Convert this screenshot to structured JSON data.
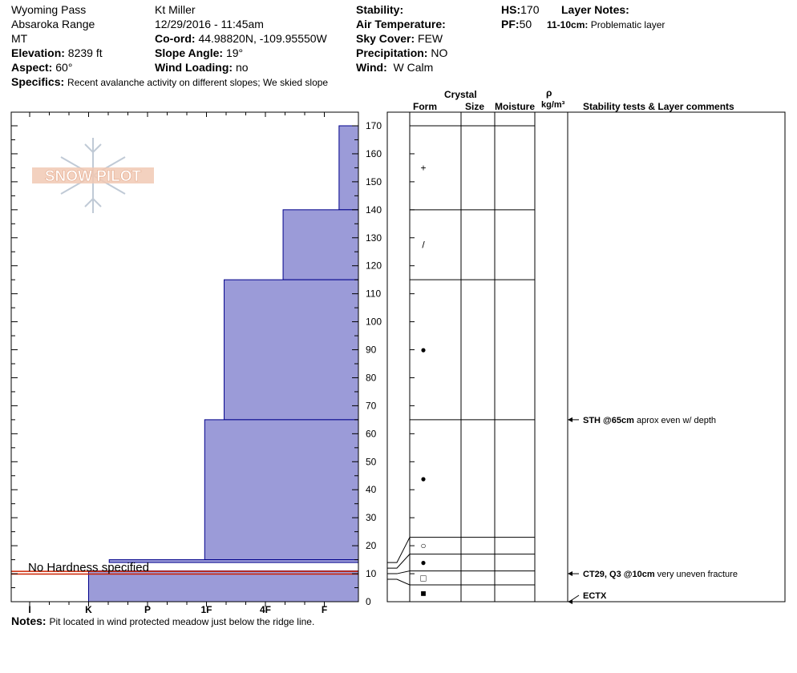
{
  "header": {
    "location": "Wyoming Pass",
    "range": "Absaroka Range",
    "state": "MT",
    "elevation_label": "Elevation:",
    "elevation": "8239 ft",
    "aspect_label": "Aspect:",
    "aspect": "60°",
    "specifics_label": "Specifics:",
    "specifics": "Recent avalanche activity on different slopes;  We skied slope",
    "observer": "Kt Miller",
    "datetime": "12/29/2016 - 11:45am",
    "coord_label": "Co-ord:",
    "coord": "44.98820N, -109.95550W",
    "slope_label": "Slope Angle:",
    "slope": "19°",
    "wind_loading_label": "Wind Loading:",
    "wind_loading": "no",
    "stability_label": "Stability:",
    "stability": "",
    "air_temp_label": "Air Temperature:",
    "air_temp": "",
    "sky_label": "Sky Cover:",
    "sky": "FEW",
    "precip_label": "Precipitation:",
    "precip": "NO",
    "wind_label": "Wind:",
    "wind": "W Calm",
    "hs_label": "HS:",
    "hs": "170",
    "pf_label": "PF:",
    "pf": "50",
    "layer_notes_label": "Layer Notes:",
    "layer_note_depth": "11-10cm:",
    "layer_note_text": "Problematic layer"
  },
  "notes_label": "Notes:",
  "notes": "Pit located in wind protected meadow just below the ridge line.",
  "logo_text": "SNOW PILOT",
  "no_hardness_text": "No Hardness specified",
  "columns": {
    "crystal": "Crystal",
    "form": "Form",
    "size": "Size",
    "moisture": "Moisture",
    "rho": "ρ",
    "density_unit": "kg/m³",
    "tests": "Stability tests & Layer comments"
  },
  "chart_data": {
    "type": "bar",
    "title": "",
    "xlabel": "",
    "ylabel": "",
    "hardness_ticks": [
      "I",
      "K",
      "P",
      "1F",
      "4F",
      "F"
    ],
    "ylim": [
      0,
      175
    ],
    "yticks": [
      0,
      10,
      20,
      30,
      40,
      50,
      60,
      70,
      80,
      90,
      100,
      110,
      120,
      130,
      140,
      150,
      160,
      170
    ],
    "layers": [
      {
        "top": 170,
        "bottom": 140,
        "hardness": "F",
        "form": "+"
      },
      {
        "top": 140,
        "bottom": 115,
        "hardness": "4F",
        "form": "/"
      },
      {
        "top": 115,
        "bottom": 65,
        "hardness": "F-1F",
        "form": "●"
      },
      {
        "top": 65,
        "bottom": 23,
        "hardness": "1F-",
        "form": "●"
      },
      {
        "top": 23,
        "bottom": 17,
        "hardness": "1F-",
        "form": "○"
      },
      {
        "top": 17,
        "bottom": 11,
        "hardness": "1F-",
        "form": "●"
      },
      {
        "top": 11,
        "bottom": 6,
        "hardness": "",
        "form": "□"
      },
      {
        "top": 6,
        "bottom": 0,
        "hardness": "K+",
        "form": "■"
      }
    ],
    "profile_steps": [
      {
        "top": 170,
        "bottom": 140,
        "x": 5.25
      },
      {
        "top": 140,
        "bottom": 115,
        "x": 4.3
      },
      {
        "top": 115,
        "bottom": 65,
        "x": 3.3
      },
      {
        "top": 65,
        "bottom": 15,
        "x": 2.97
      },
      {
        "top": 15,
        "bottom": 14,
        "x": 1.35
      },
      {
        "top": 11,
        "bottom": 0,
        "x": 1.0
      }
    ],
    "tests": [
      {
        "depth": 65,
        "code": "STH @65cm",
        "comment": "aprox even w/ depth"
      },
      {
        "depth": 10,
        "code": "CT29, Q3 @10cm",
        "comment": "very uneven fracture"
      },
      {
        "depth": 0,
        "code": "ECTX",
        "comment": ""
      }
    ],
    "colors": {
      "fill": "#9b9bd8",
      "edge": "#00008b",
      "problem": "#cc2200"
    }
  }
}
